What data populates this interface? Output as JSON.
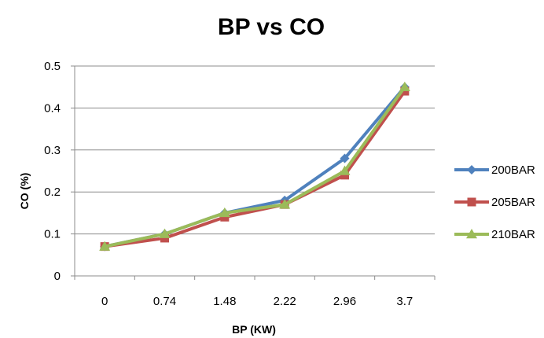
{
  "chart_data": {
    "type": "line",
    "title": "BP vs CO",
    "xlabel": "BP (KW)",
    "ylabel": "CO (%)",
    "categories": [
      "0",
      "0.74",
      "1.48",
      "2.22",
      "2.96",
      "3.7"
    ],
    "yticks": [
      "0",
      "0.1",
      "0.2",
      "0.3",
      "0.4",
      "0.5"
    ],
    "ylim": [
      0,
      0.5
    ],
    "grid": true,
    "legend_position": "right",
    "series": [
      {
        "name": "200BAR",
        "color": "#4f81bd",
        "marker": "diamond",
        "values": [
          0.07,
          0.1,
          0.15,
          0.18,
          0.28,
          0.45
        ]
      },
      {
        "name": "205BAR",
        "color": "#c0504d",
        "marker": "square",
        "values": [
          0.07,
          0.09,
          0.14,
          0.17,
          0.24,
          0.44
        ]
      },
      {
        "name": "210BAR",
        "color": "#9bbb59",
        "marker": "triangle",
        "values": [
          0.07,
          0.1,
          0.15,
          0.17,
          0.25,
          0.45
        ]
      }
    ]
  }
}
